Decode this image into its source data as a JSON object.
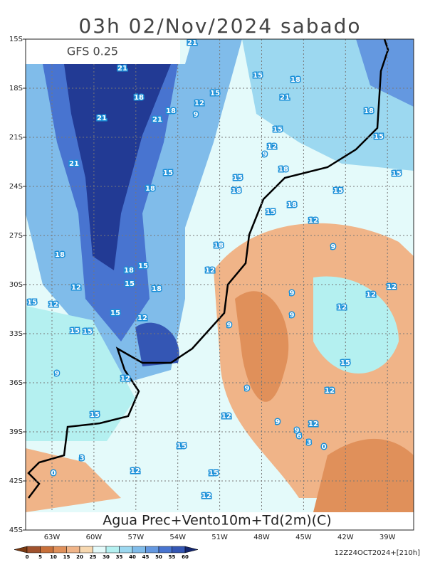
{
  "header": {
    "title": "03h 02/Nov/2024 sabado",
    "model": "GFS 0.25"
  },
  "map": {
    "lat_labels": [
      "15S",
      "18S",
      "21S",
      "24S",
      "27S",
      "30S",
      "33S",
      "36S",
      "39S",
      "42S",
      "45S"
    ],
    "lon_labels": [
      "63W",
      "60W",
      "57W",
      "54W",
      "51W",
      "48W",
      "45W",
      "42W",
      "39W"
    ],
    "contour_labels": [
      21,
      21,
      18,
      15,
      18,
      15,
      12,
      18,
      21,
      21,
      9,
      18,
      21,
      15,
      15,
      12,
      9,
      21,
      15,
      15,
      18,
      15,
      18,
      18,
      15,
      18,
      15,
      12,
      18,
      18,
      9,
      18,
      15,
      15,
      18,
      12,
      12,
      9,
      12,
      12,
      15,
      12,
      15,
      12,
      9,
      12,
      9,
      15,
      15,
      9,
      12,
      9,
      12,
      15,
      15,
      12,
      9,
      9,
      12,
      6,
      3,
      0,
      15,
      3,
      0,
      12,
      15,
      12
    ],
    "caption": "Agua Prec+Vento10m+Td(2m)(C)"
  },
  "colorbar": {
    "ticks": [
      0,
      5,
      10,
      15,
      20,
      25,
      30,
      35,
      40,
      45,
      50,
      55,
      60
    ],
    "colors": [
      "#7a3a12",
      "#a0522d",
      "#c8703a",
      "#e0905a",
      "#f0b488",
      "#f7d8b0",
      "#e4fafa",
      "#b4f0f0",
      "#9cd8f0",
      "#80bcea",
      "#6498e0",
      "#4874d0",
      "#3456b4",
      "#223a94",
      "#14266e"
    ]
  },
  "footer": {
    "run": "12Z24OCT2024+[210h]"
  }
}
